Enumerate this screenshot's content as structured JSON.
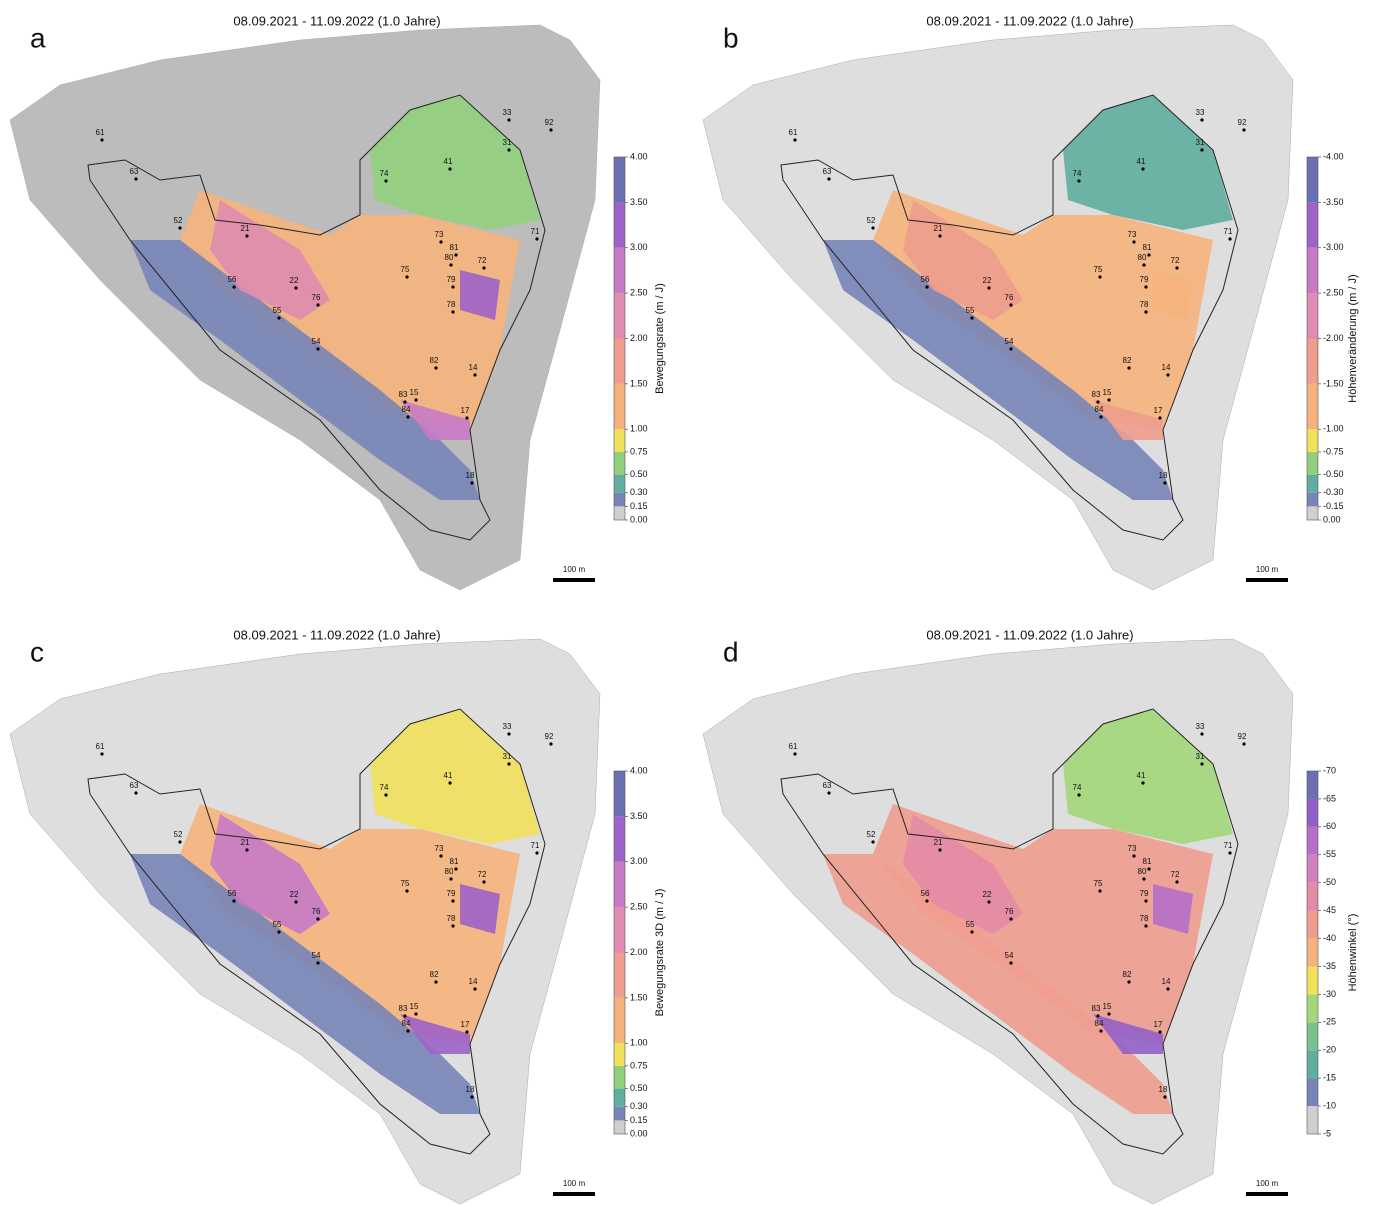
{
  "panels": [
    {
      "letter": "a",
      "title": "08.09.2021 - 11.09.2022 (1.0 Jahre)",
      "scale_bar": "100 m",
      "colorbar": {
        "label": "Bewegungsrate (m / J)",
        "clim": [
          0,
          4
        ],
        "ticks": [
          {
            "value": 0,
            "label": "0.00"
          },
          {
            "value": 0.15,
            "label": "0.15"
          },
          {
            "value": 0.3,
            "label": "0.30"
          },
          {
            "value": 0.5,
            "label": "0.50"
          },
          {
            "value": 0.75,
            "label": "0.75"
          },
          {
            "value": 1,
            "label": "1.00"
          },
          {
            "value": 1.5,
            "label": "1.50"
          },
          {
            "value": 2,
            "label": "2.00"
          },
          {
            "value": 2.5,
            "label": "2.50"
          },
          {
            "value": 3,
            "label": "3.00"
          },
          {
            "value": 3.5,
            "label": "3.50"
          },
          {
            "value": 4,
            "label": "4.00"
          }
        ],
        "colors": [
          "#cfcfcf",
          "#7784b6",
          "#5fae9f",
          "#91cf7d",
          "#f1e05c",
          "#f6b27c",
          "#ee9d8e",
          "#df8cb0",
          "#c77ac6",
          "#9d63c8",
          "#6b70b3"
        ]
      }
    },
    {
      "letter": "b",
      "title": "08.09.2021 - 11.09.2022 (1.0 Jahre)",
      "scale_bar": "100 m",
      "colorbar": {
        "label": "Höhenveränderung (m / J)",
        "clim": [
          0,
          -4
        ],
        "ticks": [
          {
            "value": 0,
            "label": "0.00"
          },
          {
            "value": -0.15,
            "label": "-0.15"
          },
          {
            "value": -0.3,
            "label": "-0.30"
          },
          {
            "value": -0.5,
            "label": "-0.50"
          },
          {
            "value": -0.75,
            "label": "-0.75"
          },
          {
            "value": -1,
            "label": "-1.00"
          },
          {
            "value": -1.5,
            "label": "-1.50"
          },
          {
            "value": -2,
            "label": "-2.00"
          },
          {
            "value": -2.5,
            "label": "-2.50"
          },
          {
            "value": -3,
            "label": "-3.00"
          },
          {
            "value": -3.5,
            "label": "-3.50"
          },
          {
            "value": -4,
            "label": "-4.00"
          }
        ],
        "colors": [
          "#cfcfcf",
          "#7784b6",
          "#5fae9f",
          "#91cf7d",
          "#f1e05c",
          "#f6b27c",
          "#ee9d8e",
          "#df8cb0",
          "#c77ac6",
          "#9d63c8",
          "#6b70b3"
        ]
      }
    },
    {
      "letter": "c",
      "title": "08.09.2021 - 11.09.2022 (1.0 Jahre)",
      "scale_bar": "100 m",
      "colorbar": {
        "label": "Bewegungsrate 3D (m / J)",
        "clim": [
          0,
          4
        ],
        "ticks": [
          {
            "value": 0,
            "label": "0.00"
          },
          {
            "value": 0.15,
            "label": "0.15"
          },
          {
            "value": 0.3,
            "label": "0.30"
          },
          {
            "value": 0.5,
            "label": "0.50"
          },
          {
            "value": 0.75,
            "label": "0.75"
          },
          {
            "value": 1,
            "label": "1.00"
          },
          {
            "value": 1.5,
            "label": "1.50"
          },
          {
            "value": 2,
            "label": "2.00"
          },
          {
            "value": 2.5,
            "label": "2.50"
          },
          {
            "value": 3,
            "label": "3.00"
          },
          {
            "value": 3.5,
            "label": "3.50"
          },
          {
            "value": 4,
            "label": "4.00"
          }
        ],
        "colors": [
          "#cfcfcf",
          "#7784b6",
          "#5fae9f",
          "#91cf7d",
          "#f1e05c",
          "#f6b27c",
          "#ee9d8e",
          "#df8cb0",
          "#c77ac6",
          "#9d63c8",
          "#6b70b3"
        ]
      }
    },
    {
      "letter": "d",
      "title": "08.09.2021 - 11.09.2022 (1.0 Jahre)",
      "scale_bar": "100 m",
      "colorbar": {
        "label": "Höhenwinkel (°)",
        "clim": [
          -5,
          -70
        ],
        "ticks": [
          -5,
          -10,
          -15,
          -20,
          -25,
          -30,
          -35,
          -40,
          -45,
          -50,
          -55,
          -60,
          -65,
          -70
        ],
        "colors": [
          "#cfcfcf",
          "#7784b6",
          "#5fae9f",
          "#79c18c",
          "#a3d77a",
          "#f1e05c",
          "#f6b27c",
          "#ee9d8e",
          "#e38ba6",
          "#d27fbd",
          "#b56fc8",
          "#9160c6",
          "#6b70b3"
        ]
      }
    }
  ],
  "points": [
    "61",
    "63",
    "52",
    "21",
    "56",
    "22",
    "76",
    "55",
    "54",
    "75",
    "73",
    "81",
    "80",
    "72",
    "79",
    "78",
    "82",
    "14",
    "83",
    "15",
    "84",
    "17",
    "18",
    "41",
    "74",
    "71",
    "33",
    "31",
    "92"
  ]
}
